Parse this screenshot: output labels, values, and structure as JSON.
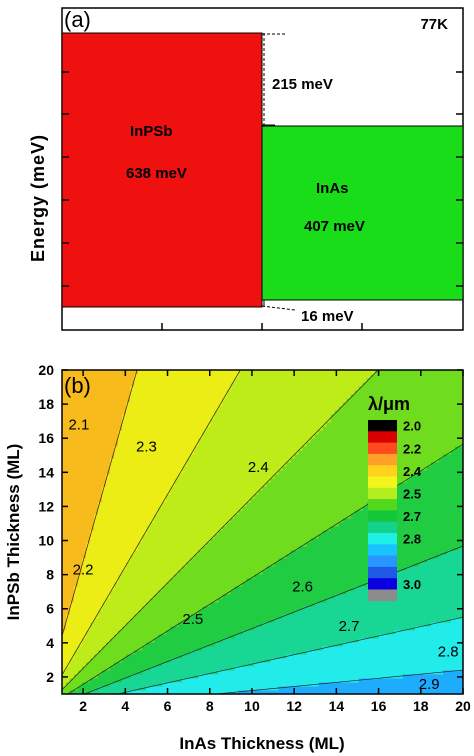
{
  "chart_data": [
    {
      "type": "bar",
      "panel_label": "(a)",
      "temperature_label": "77K",
      "ylabel": "Energy (meV)",
      "bands": [
        {
          "name": "InPSb",
          "value_text": "638 meV",
          "energy_meV": 638,
          "color": "#ef1010"
        },
        {
          "name": "InAs",
          "value_text": "407 meV",
          "energy_meV": 407,
          "color": "#18dd18"
        }
      ],
      "offsets": [
        {
          "label": "215 meV",
          "value_meV": 215,
          "edge": "conduction"
        },
        {
          "label": "16 meV",
          "value_meV": 16,
          "edge": "valence"
        }
      ]
    },
    {
      "type": "heatmap",
      "panel_label": "(b)",
      "xlabel": "InAs Thickness (ML)",
      "ylabel": "InPSb Thickness (ML)",
      "xlim": [
        1,
        20
      ],
      "ylim": [
        1,
        20
      ],
      "x_ticks": [
        "2",
        "4",
        "6",
        "8",
        "10",
        "12",
        "14",
        "16",
        "18",
        "20"
      ],
      "y_ticks": [
        "2",
        "4",
        "6",
        "8",
        "10",
        "12",
        "14",
        "16",
        "18",
        "20"
      ],
      "legend_title": "λ/μm",
      "legend_labels": [
        "2.0",
        "2.2",
        "2.4",
        "2.5",
        "2.7",
        "2.8",
        "3.0"
      ],
      "legend_colors": [
        "#000000",
        "#d80000",
        "#ff4a1e",
        "#ffa028",
        "#ffd21e",
        "#f5f51e",
        "#b4ee1e",
        "#52d81e",
        "#14c83c",
        "#14d28c",
        "#1ef0e6",
        "#19c3ff",
        "#2896ff",
        "#1e5ae6",
        "#0a00e0",
        "#8c8c8c"
      ],
      "contour_labels": [
        {
          "text": "2.1",
          "x": 1.8,
          "y": 16.8
        },
        {
          "text": "2.2",
          "x": 2.0,
          "y": 8.3
        },
        {
          "text": "2.3",
          "x": 5.0,
          "y": 15.5
        },
        {
          "text": "2.4",
          "x": 10.3,
          "y": 14.3
        },
        {
          "text": "2.5",
          "x": 7.2,
          "y": 5.4
        },
        {
          "text": "2.6",
          "x": 12.4,
          "y": 7.3
        },
        {
          "text": "2.7",
          "x": 14.6,
          "y": 5.0
        },
        {
          "text": "2.8",
          "x": 19.3,
          "y": 3.5
        },
        {
          "text": "2.9",
          "x": 18.4,
          "y": 1.6
        }
      ],
      "contour_levels": [
        2.0,
        2.1,
        2.2,
        2.3,
        2.4,
        2.5,
        2.6,
        2.7,
        2.8,
        2.9,
        3.0
      ],
      "region_colors": [
        "#e8301e",
        "#f07a1e",
        "#f7bb1c",
        "#eded16",
        "#bdec18",
        "#70dc1e",
        "#20cc42",
        "#18d694",
        "#22ecea",
        "#1eacff",
        "#1764ec"
      ]
    }
  ]
}
